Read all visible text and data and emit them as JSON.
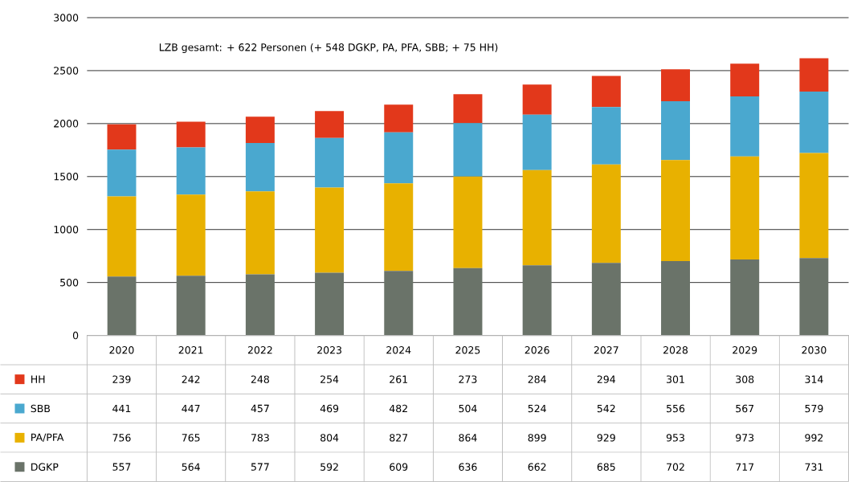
{
  "chart_data": {
    "type": "bar",
    "stacked": true,
    "categories": [
      "2020",
      "2021",
      "2022",
      "2023",
      "2024",
      "2025",
      "2026",
      "2027",
      "2028",
      "2029",
      "2030"
    ],
    "series": [
      {
        "name": "DGKP",
        "color": "#6a7369",
        "values": [
          557,
          564,
          577,
          592,
          609,
          636,
          662,
          685,
          702,
          717,
          731
        ]
      },
      {
        "name": "PA/PFA",
        "color": "#e8b100",
        "values": [
          756,
          765,
          783,
          804,
          827,
          864,
          899,
          929,
          953,
          973,
          992
        ]
      },
      {
        "name": "SBB",
        "color": "#4aa8cf",
        "values": [
          441,
          447,
          457,
          469,
          482,
          504,
          524,
          542,
          556,
          567,
          579
        ]
      },
      {
        "name": "HH",
        "color": "#e2381b",
        "values": [
          239,
          242,
          248,
          254,
          261,
          273,
          284,
          294,
          301,
          308,
          314
        ]
      }
    ],
    "ylim": [
      0,
      3000
    ],
    "yticks": [
      0,
      500,
      1000,
      1500,
      2000,
      2500,
      3000
    ],
    "grid": "y",
    "legend": "bottom",
    "data_labels": true,
    "annotations": [
      "LZB gesamt: + 622 Personen (+ 548 DGKP, PA, PFA, SBB; + 75 HH)"
    ]
  }
}
